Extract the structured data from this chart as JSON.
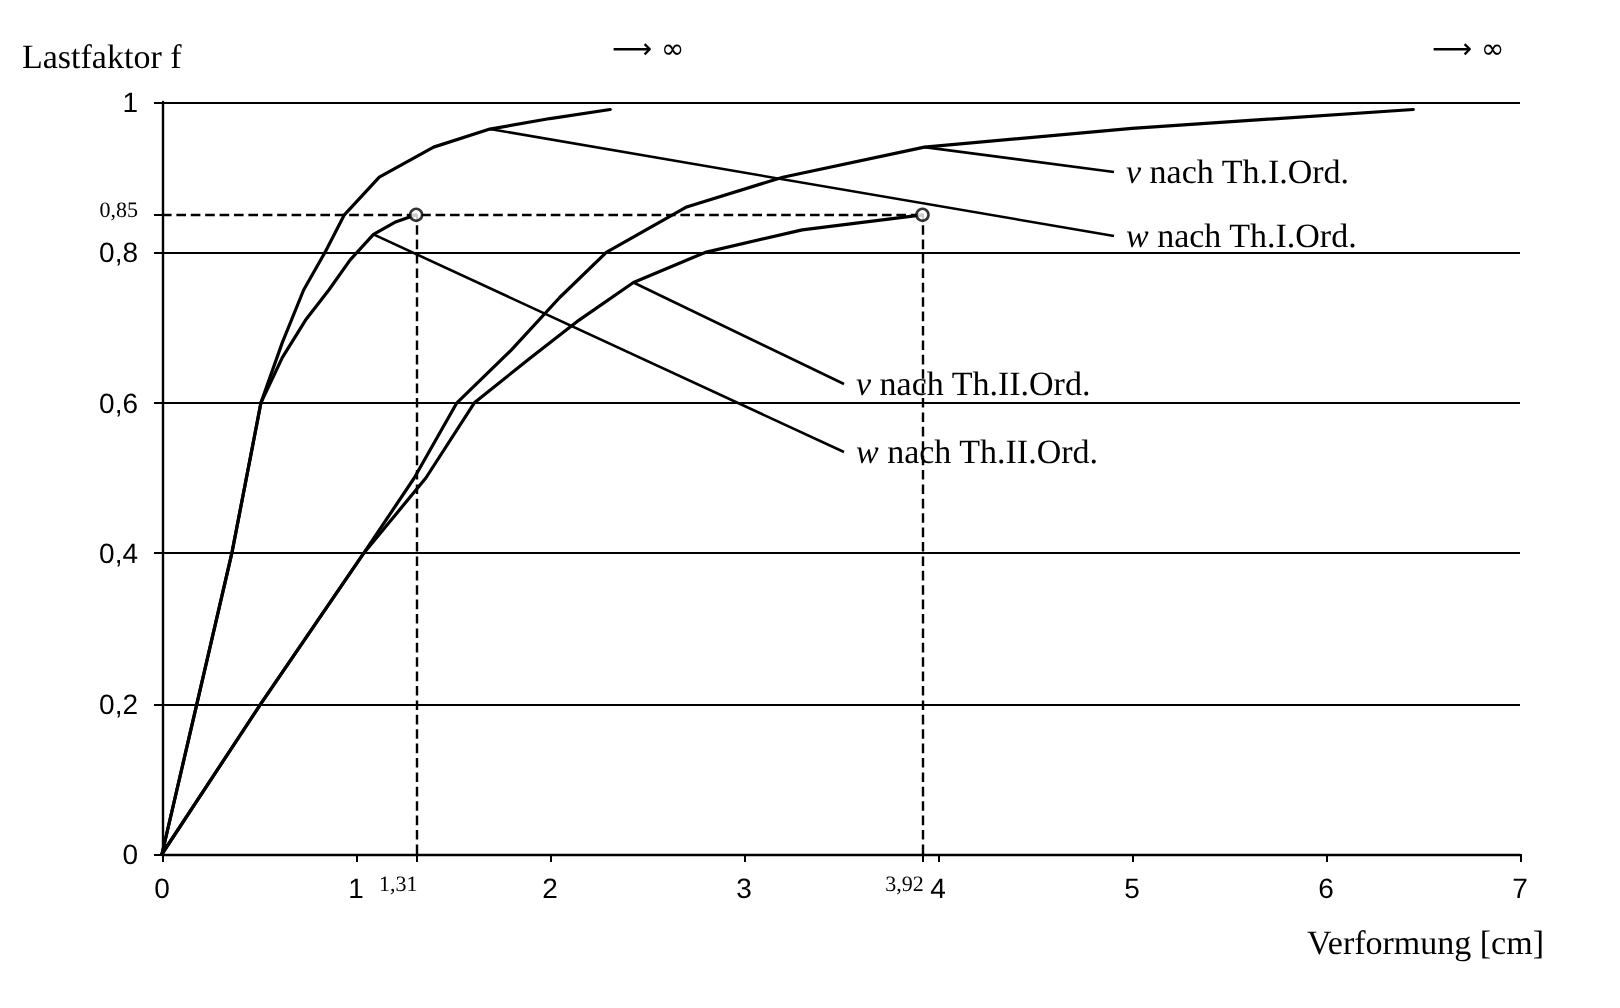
{
  "chart_data": {
    "type": "line",
    "xlabel": "Verformung [cm]",
    "ylabel": "Lastfaktor f",
    "xlim": [
      0,
      7
    ],
    "ylim": [
      0,
      1
    ],
    "xticks": [
      0,
      1,
      {
        "value": 1.31,
        "label": "1,31"
      },
      2,
      3,
      {
        "value": 3.92,
        "label": "3,92"
      },
      4,
      5,
      6,
      7
    ],
    "yticks": [
      0,
      {
        "value": 0.2,
        "label": "0,2"
      },
      {
        "value": 0.4,
        "label": "0,4"
      },
      {
        "value": 0.6,
        "label": "0,6"
      },
      {
        "value": 0.8,
        "label": "0,8"
      },
      {
        "value": 0.85,
        "label": "0,85"
      },
      1
    ],
    "grid": "y",
    "marker": "none",
    "line_style": "solid",
    "series": [
      {
        "color": "#000000",
        "x": [
          0,
          0.18,
          0.36,
          0.51,
          0.62,
          0.73,
          0.84,
          0.94,
          1.12,
          1.4,
          1.69,
          2.0,
          2.31
        ],
        "values": [
          0,
          0.2,
          0.4,
          0.6,
          0.68,
          0.75,
          0.8,
          0.85,
          0.9,
          0.94,
          0.964,
          0.978,
          0.99
        ]
      },
      {
        "color": "#000000",
        "x": [
          0,
          0.18,
          0.36,
          0.51,
          0.62,
          0.74,
          0.86,
          0.97,
          1.09,
          1.2,
          1.31
        ],
        "values": [
          0,
          0.2,
          0.4,
          0.6,
          0.66,
          0.71,
          0.75,
          0.79,
          0.824,
          0.84,
          0.85
        ]
      },
      {
        "color": "#000000",
        "x": [
          0,
          0.51,
          1.04,
          1.3,
          1.52,
          1.8,
          2.05,
          2.29,
          2.7,
          3.2,
          3.93,
          5.0,
          6.45
        ],
        "values": [
          0,
          0.2,
          0.4,
          0.5,
          0.6,
          0.67,
          0.74,
          0.8,
          0.86,
          0.9,
          0.94,
          0.965,
          0.99
        ]
      },
      {
        "color": "#000000",
        "x": [
          0,
          0.51,
          1.04,
          1.36,
          1.61,
          1.9,
          2.15,
          2.43,
          2.8,
          3.3,
          3.92
        ],
        "values": [
          0,
          0.2,
          0.4,
          0.5,
          0.6,
          0.66,
          0.71,
          0.76,
          0.8,
          0.83,
          0.85
        ]
      },
      {
        "type": "scatter",
        "marker": "circle",
        "color": "#000000",
        "x": [
          1.31,
          3.92
        ],
        "values": [
          0.85,
          0.85
        ]
      }
    ],
    "ref_lines": [
      {
        "axis": "y",
        "value": 0.85,
        "line_style": "dashed",
        "color": "#000000"
      },
      {
        "axis": "x",
        "value": 1.31,
        "line_style": "dashed",
        "color": "#000000"
      },
      {
        "axis": "x",
        "value": 3.92,
        "line_style": "dashed",
        "color": "#000000"
      }
    ],
    "annotations": [
      {
        "text": "v nach Th.I.Ord.",
        "x": 3.93,
        "y": 0.94
      },
      {
        "text": "w nach Th.I.Ord.",
        "x": 1.69,
        "y": 0.964
      },
      {
        "text": "v nach Th.II.Ord.",
        "x": 2.43,
        "y": 0.76
      },
      {
        "text": "w nach Th.II.Ord.",
        "x": 1.09,
        "y": 0.824
      },
      "⟶ ∞",
      "⟶ ∞"
    ]
  }
}
